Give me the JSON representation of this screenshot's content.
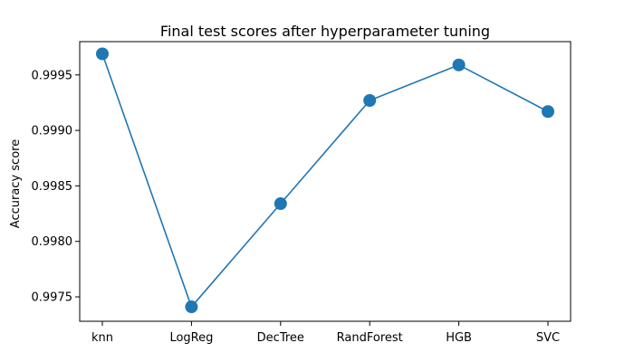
{
  "chart_data": {
    "type": "line",
    "title": "Final test scores after hyperparameter tuning",
    "xlabel": "",
    "ylabel": "Accuracy score",
    "categories": [
      "knn",
      "LogReg",
      "DecTree",
      "RandForest",
      "HGB",
      "SVC"
    ],
    "series": [
      {
        "values": [
          0.99969,
          0.99741,
          0.99834,
          0.99927,
          0.99959,
          0.99917
        ],
        "color": "#1f77b4",
        "marker": "circle"
      }
    ],
    "yticks": [
      0.9975,
      0.998,
      0.9985,
      0.999,
      0.9995
    ],
    "ytick_labels": [
      "0.9975",
      "0.9980",
      "0.9985",
      "0.9990",
      "0.9995"
    ],
    "ylim": [
      0.99728,
      0.9998
    ],
    "grid": false,
    "legend": "none"
  }
}
